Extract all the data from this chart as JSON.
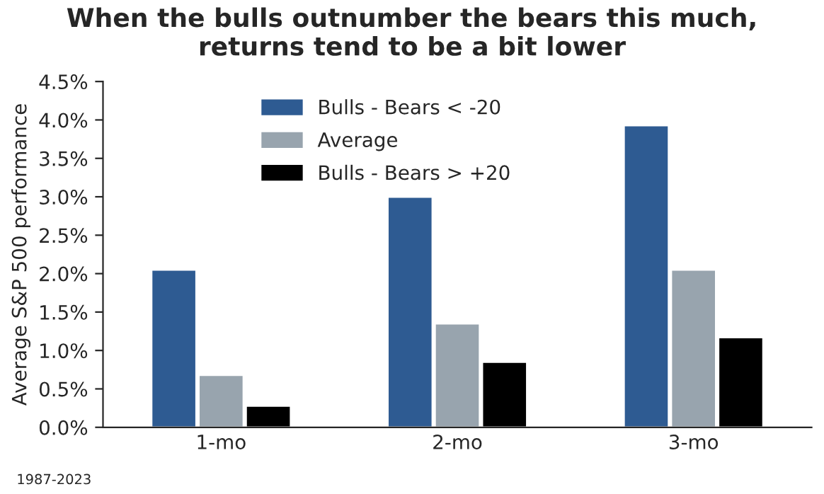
{
  "chart_data": {
    "type": "bar",
    "title": "When the bulls outnumber the bears this much,\nreturns tend to be a bit lower",
    "ylabel": "Average S&P 500 performance",
    "categories": [
      "1-mo",
      "2-mo",
      "3-mo"
    ],
    "series": [
      {
        "name": "Bulls - Bears < -20",
        "color": "#2e5b92",
        "values": [
          2.05,
          3.0,
          3.93
        ]
      },
      {
        "name": "Average",
        "color": "#98a4ae",
        "values": [
          0.68,
          1.35,
          2.05
        ]
      },
      {
        "name": "Bulls - Bears > +20",
        "color": "#000000",
        "values": [
          0.28,
          0.85,
          1.17
        ]
      }
    ],
    "ylim": [
      0,
      4.5
    ],
    "yticks": [
      {
        "value": 0,
        "label": "0.0%"
      },
      {
        "value": 0.5,
        "label": "0.5%"
      },
      {
        "value": 1,
        "label": "1.0%"
      },
      {
        "value": 1.5,
        "label": "1.5%"
      },
      {
        "value": 2,
        "label": "2.0%"
      },
      {
        "value": 2.5,
        "label": "2.5%"
      },
      {
        "value": 3,
        "label": "3.0%"
      },
      {
        "value": 3.5,
        "label": "3.5%"
      },
      {
        "value": 4,
        "label": "4.0%"
      },
      {
        "value": 4.5,
        "label": "4.5%"
      }
    ],
    "legend": "top left",
    "grid": false,
    "annotations": [
      "1987-2023"
    ]
  }
}
